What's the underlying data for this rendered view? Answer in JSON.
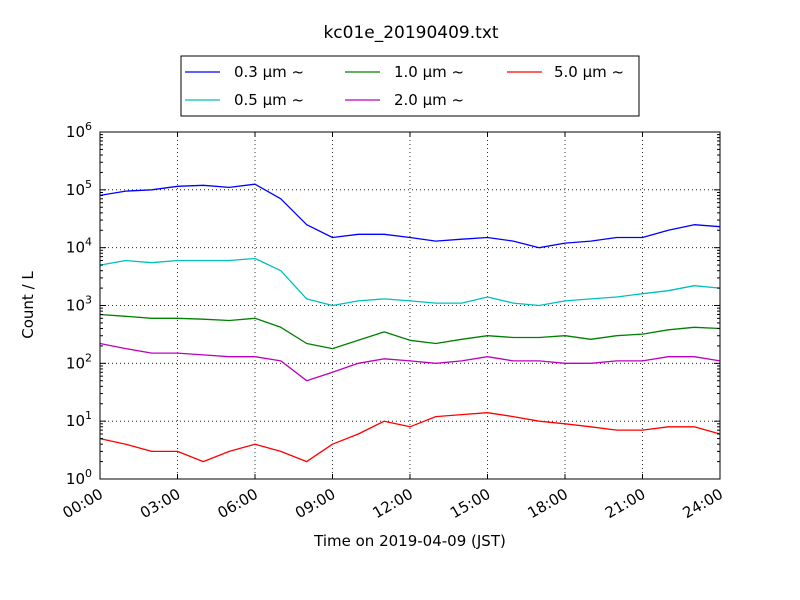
{
  "chart_data": {
    "type": "line",
    "title": "kc01e_20190409.txt",
    "xlabel": "Time on 2019-04-09 (JST)",
    "ylabel": "Count / L",
    "x_ticks": [
      "00:00",
      "03:00",
      "06:00",
      "09:00",
      "12:00",
      "15:00",
      "18:00",
      "21:00",
      "24:00"
    ],
    "x_range_hours": [
      0,
      24
    ],
    "y_scale": "log",
    "y_range": [
      1,
      1000000
    ],
    "y_ticks": [
      {
        "base": "10",
        "exp": "0",
        "value": 1
      },
      {
        "base": "10",
        "exp": "1",
        "value": 10
      },
      {
        "base": "10",
        "exp": "2",
        "value": 100
      },
      {
        "base": "10",
        "exp": "3",
        "value": 1000
      },
      {
        "base": "10",
        "exp": "4",
        "value": 10000
      },
      {
        "base": "10",
        "exp": "5",
        "value": 100000
      },
      {
        "base": "10",
        "exp": "6",
        "value": 1000000
      }
    ],
    "grid": true,
    "legend_position": "top-center",
    "x_hours": [
      0,
      1,
      2,
      3,
      4,
      5,
      6,
      7,
      8,
      9,
      10,
      11,
      12,
      13,
      14,
      15,
      16,
      17,
      18,
      19,
      20,
      21,
      22,
      23,
      24
    ],
    "series": [
      {
        "name": "0.3 μm ~",
        "color": "#0000ff",
        "values": [
          80000,
          95000,
          100000,
          115000,
          120000,
          110000,
          125000,
          70000,
          25000,
          15000,
          17000,
          17000,
          15000,
          13000,
          14000,
          15000,
          13000,
          10000,
          12000,
          13000,
          15000,
          15000,
          20000,
          25000,
          23000
        ]
      },
      {
        "name": "0.5 μm ~",
        "color": "#00bfbf",
        "values": [
          5000,
          6000,
          5500,
          6000,
          6000,
          6000,
          6500,
          4000,
          1300,
          1000,
          1200,
          1300,
          1200,
          1100,
          1100,
          1400,
          1100,
          1000,
          1200,
          1300,
          1400,
          1600,
          1800,
          2200,
          2000
        ]
      },
      {
        "name": "1.0 μm ~",
        "color": "#008000",
        "values": [
          700,
          650,
          600,
          600,
          580,
          550,
          600,
          420,
          220,
          180,
          250,
          350,
          250,
          220,
          260,
          300,
          280,
          280,
          300,
          260,
          300,
          320,
          380,
          420,
          400
        ]
      },
      {
        "name": "2.0 μm ~",
        "color": "#bf00bf",
        "values": [
          220,
          180,
          150,
          150,
          140,
          130,
          130,
          110,
          50,
          70,
          100,
          120,
          110,
          100,
          110,
          130,
          110,
          110,
          100,
          100,
          110,
          110,
          130,
          130,
          110
        ]
      },
      {
        "name": "5.0 μm ~",
        "color": "#ff0000",
        "values": [
          5,
          4,
          3,
          3,
          2,
          3,
          4,
          3,
          2,
          4,
          6,
          10,
          8,
          12,
          13,
          14,
          12,
          10,
          9,
          8,
          7,
          7,
          8,
          8,
          6
        ]
      }
    ]
  }
}
